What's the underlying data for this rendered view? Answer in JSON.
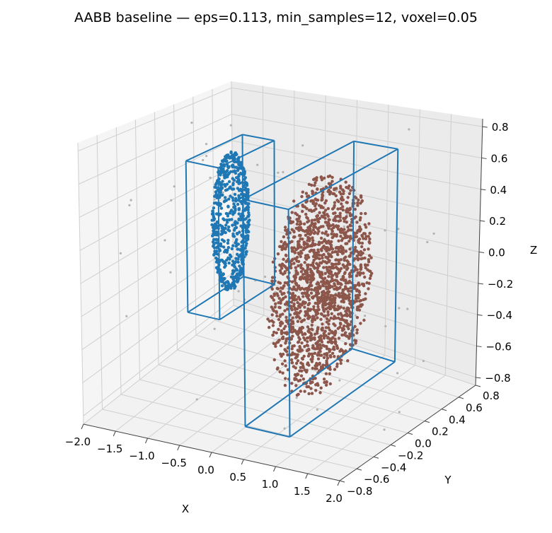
{
  "chart_data": {
    "type": "scatter",
    "projection": "3d",
    "title": "AABB baseline — eps=0.113, min_samples=12, voxel=0.05",
    "xlabel": "X",
    "ylabel": "Y",
    "zlabel": "Z",
    "xlim": [
      -2.0,
      2.0
    ],
    "ylim": [
      -0.8,
      0.8
    ],
    "zlim": [
      -0.85,
      0.85
    ],
    "x_ticks": [
      "−2.0",
      "−1.5",
      "−1.0",
      "−0.5",
      "0.0",
      "0.5",
      "1.0",
      "1.5",
      "2.0"
    ],
    "y_ticks": [
      "−0.8",
      "−0.6",
      "−0.4",
      "−0.2",
      "0.0",
      "0.2",
      "0.4",
      "0.6",
      "0.8"
    ],
    "z_ticks": [
      "−0.8",
      "−0.6",
      "−0.4",
      "−0.2",
      "0.0",
      "0.2",
      "0.4",
      "0.6",
      "0.8"
    ],
    "grid": true,
    "clusters": [
      {
        "color": "#1f77b4",
        "shape": "ellipsoid-shell",
        "center": [
          -0.6,
          -0.15,
          0.3
        ],
        "semi_axes": [
          0.14,
          0.18,
          0.45
        ],
        "points": 620,
        "aabb": {
          "min": [
            -0.85,
            -0.45,
            -0.2
          ],
          "max": [
            -0.35,
            0.15,
            0.75
          ]
        }
      },
      {
        "color": "#8c564b",
        "shape": "ellipsoid-volume",
        "center": [
          0.6,
          0.0,
          -0.05
        ],
        "semi_axes": [
          0.3,
          0.55,
          0.7
        ],
        "points": 1700,
        "aabb": {
          "min": [
            0.25,
            -0.6,
            -0.75
          ],
          "max": [
            0.95,
            0.6,
            0.65
          ]
        }
      }
    ],
    "noise": {
      "color": "#b3b3b3",
      "points": 70
    }
  }
}
